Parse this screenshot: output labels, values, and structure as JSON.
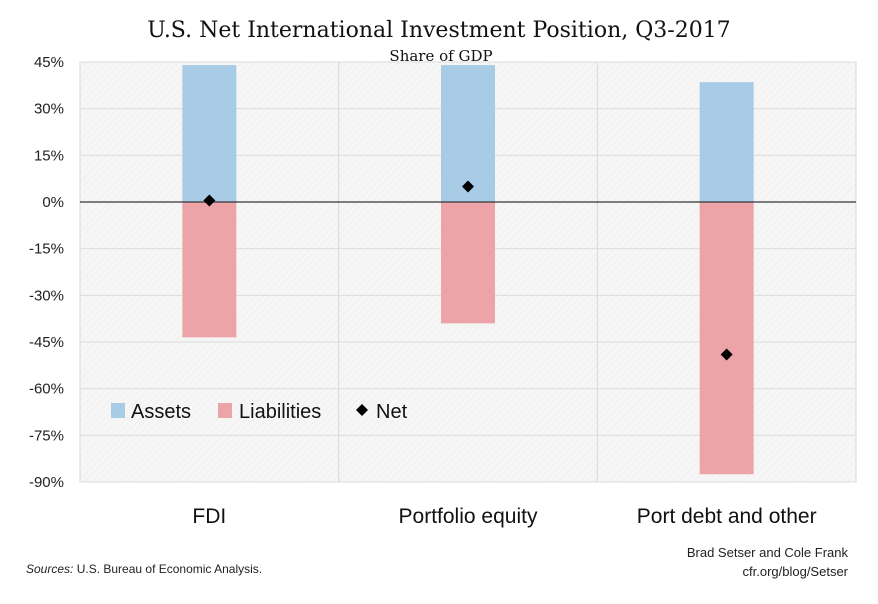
{
  "chart_data": {
    "type": "bar",
    "title": "U.S. Net International Investment Position, Q3-2017",
    "subtitle": "Share of GDP",
    "categories": [
      "FDI",
      "Portfolio equity",
      "Port debt and other"
    ],
    "series": [
      {
        "name": "Assets",
        "kind": "bar",
        "color": "#a8cbe6",
        "values": [
          44,
          44,
          38.5
        ]
      },
      {
        "name": "Liabilities",
        "kind": "bar",
        "color": "#eca4a8",
        "values": [
          -43.5,
          -39,
          -87.5
        ]
      },
      {
        "name": "Net",
        "kind": "diamond",
        "color": "#000000",
        "values": [
          0.5,
          5,
          -49
        ]
      }
    ],
    "ylim": [
      -90,
      45
    ],
    "yticks": [
      45,
      30,
      15,
      0,
      -15,
      -30,
      -45,
      -60,
      -75,
      -90
    ],
    "ytick_labels": [
      "45%",
      "30%",
      "15%",
      "0%",
      "-15%",
      "-30%",
      "-45%",
      "-60%",
      "-75%",
      "-90%"
    ],
    "xlabel": "",
    "ylabel": "",
    "grid": true,
    "legend_position": "lower-left"
  },
  "footer": {
    "source_label": "Sources:",
    "source_text": " U.S. Bureau of Economic Analysis.",
    "credit_line1": "Brad Setser and Cole Frank",
    "credit_line2": "cfr.org/blog/Setser"
  }
}
